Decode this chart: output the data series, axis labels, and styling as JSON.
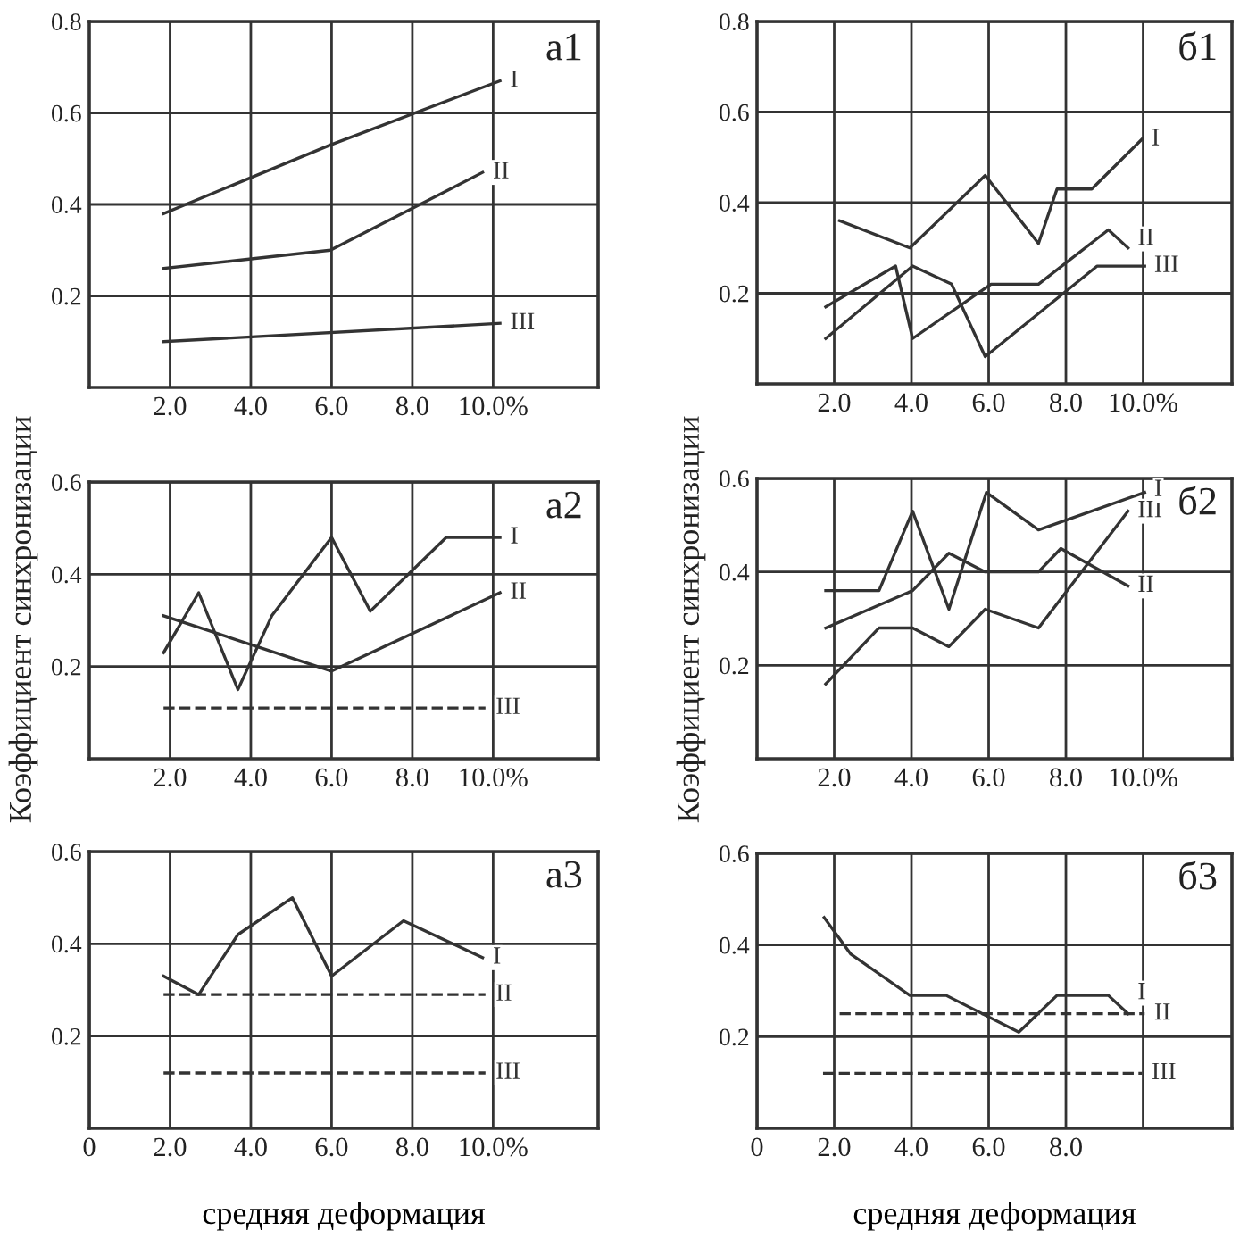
{
  "chart_data": [
    {
      "type": "line",
      "title": "а1",
      "xlim": [
        0,
        12.6
      ],
      "ylim": [
        0,
        0.8
      ],
      "xticks": [
        {
          "value": 2,
          "label": "2.0"
        },
        {
          "value": 4,
          "label": "4.0"
        },
        {
          "value": 6,
          "label": "6.0"
        },
        {
          "value": 8,
          "label": "8.0"
        },
        {
          "value": 10,
          "label": "10.0%"
        }
      ],
      "yticks": [
        0.2,
        0.4,
        0.6,
        0.8
      ],
      "grid": true,
      "series": [
        {
          "name": "I",
          "color": "#333333",
          "x": [
            1.84,
            5.97,
            10.17
          ],
          "values": [
            0.38,
            0.53,
            0.67
          ]
        },
        {
          "name": "II",
          "color": "#333333",
          "x": [
            1.84,
            5.97,
            9.74
          ],
          "values": [
            0.26,
            0.3,
            0.47
          ]
        },
        {
          "name": "III",
          "color": "#333333",
          "x": [
            1.84,
            10.17
          ],
          "values": [
            0.1,
            0.14
          ]
        }
      ]
    },
    {
      "type": "line",
      "title": "б1",
      "xlim": [
        0,
        12.3
      ],
      "ylim": [
        0,
        0.8
      ],
      "xticks": [
        {
          "value": 2,
          "label": "2.0"
        },
        {
          "value": 4,
          "label": "4.0"
        },
        {
          "value": 6,
          "label": "6.0"
        },
        {
          "value": 8,
          "label": "8.0"
        },
        {
          "value": 10,
          "label": "10.0%"
        }
      ],
      "yticks": [
        0.2,
        0.4,
        0.6,
        0.8
      ],
      "grid": true,
      "series": [
        {
          "name": "I",
          "color": "#333333",
          "x": [
            2.14,
            3.96,
            5.91,
            7.29,
            7.77,
            8.67,
            9.97
          ],
          "values": [
            0.36,
            0.3,
            0.46,
            0.31,
            0.43,
            0.43,
            0.54
          ]
        },
        {
          "name": "II",
          "color": "#333333",
          "x": [
            1.78,
            3.59,
            4.03,
            6.06,
            7.29,
            9.1,
            9.61
          ],
          "values": [
            0.17,
            0.26,
            0.1,
            0.22,
            0.22,
            0.34,
            0.3
          ]
        },
        {
          "name": "III",
          "color": "#333333",
          "x": [
            1.78,
            4.03,
            5.04,
            5.91,
            8.81,
            10.04
          ],
          "values": [
            0.1,
            0.26,
            0.22,
            0.06,
            0.26,
            0.26
          ]
        }
      ]
    },
    {
      "type": "line",
      "title": "а2",
      "ylabel": "Коэффициент синхронизации",
      "xlim": [
        0,
        12.6
      ],
      "ylim": [
        0,
        0.6
      ],
      "xticks": [
        {
          "value": 2,
          "label": "2.0"
        },
        {
          "value": 4,
          "label": "4.0"
        },
        {
          "value": 6,
          "label": "6.0"
        },
        {
          "value": 8,
          "label": "8.0"
        },
        {
          "value": 10,
          "label": "10.0%"
        }
      ],
      "yticks": [
        0.2,
        0.4,
        0.6
      ],
      "grid": true,
      "series": [
        {
          "name": "I",
          "color": "#333333",
          "x": [
            1.84,
            2.71,
            3.68,
            4.52,
            6.0,
            6.96,
            8.84,
            10.17
          ],
          "values": [
            0.23,
            0.36,
            0.15,
            0.31,
            0.48,
            0.32,
            0.48,
            0.48
          ]
        },
        {
          "name": "II",
          "color": "#333333",
          "x": [
            1.84,
            6.0,
            10.17
          ],
          "values": [
            0.31,
            0.19,
            0.36
          ]
        },
        {
          "name": "III",
          "color": "#333333",
          "line_style": "dashed",
          "x": [
            1.84,
            9.81
          ],
          "values": [
            0.11,
            0.11
          ]
        }
      ]
    },
    {
      "type": "line",
      "title": "б2",
      "ylabel": "Коэффициент синхронизации",
      "xlim": [
        0,
        12.3
      ],
      "ylim": [
        0,
        0.6
      ],
      "xticks": [
        {
          "value": 2,
          "label": "2.0"
        },
        {
          "value": 4,
          "label": "4.0"
        },
        {
          "value": 6,
          "label": "6.0"
        },
        {
          "value": 8,
          "label": "8.0"
        },
        {
          "value": 10,
          "label": "10.0%"
        }
      ],
      "yticks": [
        0.2,
        0.4,
        0.6
      ],
      "grid": true,
      "series": [
        {
          "name": "I",
          "color": "#333333",
          "x": [
            1.78,
            3.16,
            4.03,
            4.97,
            5.94,
            7.29,
            10.04
          ],
          "values": [
            0.36,
            0.36,
            0.53,
            0.32,
            0.57,
            0.49,
            0.57
          ]
        },
        {
          "name": "III",
          "color": "#333333",
          "x": [
            1.78,
            3.16,
            4.03,
            4.97,
            5.91,
            7.29,
            9.61
          ],
          "values": [
            0.16,
            0.28,
            0.28,
            0.24,
            0.32,
            0.28,
            0.53
          ]
        },
        {
          "name": "II",
          "color": "#333333",
          "x": [
            1.78,
            4.03,
            4.97,
            5.91,
            7.29,
            7.87,
            9.61
          ],
          "values": [
            0.28,
            0.36,
            0.44,
            0.4,
            0.4,
            0.45,
            0.37
          ]
        }
      ]
    },
    {
      "type": "line",
      "title": "а3",
      "xlabel": "средняя деформация",
      "xlim": [
        0,
        12.6
      ],
      "ylim": [
        0,
        0.6
      ],
      "xticks": [
        {
          "value": 0,
          "label": "0"
        },
        {
          "value": 2,
          "label": "2.0"
        },
        {
          "value": 4,
          "label": "4.0"
        },
        {
          "value": 6,
          "label": "6.0"
        },
        {
          "value": 8,
          "label": "8.0"
        },
        {
          "value": 10,
          "label": "10.0%"
        }
      ],
      "yticks": [
        0.2,
        0.4,
        0.6
      ],
      "grid": true,
      "series": [
        {
          "name": "I",
          "color": "#333333",
          "x": [
            1.84,
            2.71,
            3.68,
            5.03,
            6.0,
            7.78,
            9.74
          ],
          "values": [
            0.33,
            0.29,
            0.42,
            0.5,
            0.33,
            0.45,
            0.37
          ]
        },
        {
          "name": "II",
          "color": "#333333",
          "line_style": "dashed",
          "x": [
            1.84,
            9.81
          ],
          "values": [
            0.29,
            0.29
          ]
        },
        {
          "name": "III",
          "color": "#333333",
          "line_style": "dashed",
          "x": [
            1.84,
            9.81
          ],
          "values": [
            0.12,
            0.12
          ]
        }
      ]
    },
    {
      "type": "line",
      "title": "б3",
      "xlabel": "средняя деформация",
      "xlim": [
        0,
        12.3
      ],
      "ylim": [
        0,
        0.6
      ],
      "xticks": [
        {
          "value": 0,
          "label": "0"
        },
        {
          "value": 2,
          "label": "2.0"
        },
        {
          "value": 4,
          "label": "4.0"
        },
        {
          "value": 6,
          "label": "6.0"
        },
        {
          "value": 8,
          "label": "8.0"
        },
        {
          "value": 10,
          "label": null
        }
      ],
      "yticks": [
        0.2,
        0.4,
        0.6
      ],
      "grid": true,
      "series": [
        {
          "name": "I",
          "color": "#333333",
          "x": [
            1.74,
            2.43,
            3.96,
            4.9,
            6.78,
            7.77,
            9.1,
            9.61
          ],
          "values": [
            0.46,
            0.38,
            0.29,
            0.29,
            0.21,
            0.29,
            0.29,
            0.25
          ]
        },
        {
          "name": "II",
          "color": "#333333",
          "line_style": "dashed",
          "x": [
            2.14,
            10.04
          ],
          "values": [
            0.25,
            0.25
          ]
        },
        {
          "name": "III",
          "color": "#333333",
          "line_style": "dashed",
          "x": [
            1.71,
            9.97
          ],
          "values": [
            0.12,
            0.12
          ]
        }
      ]
    }
  ]
}
